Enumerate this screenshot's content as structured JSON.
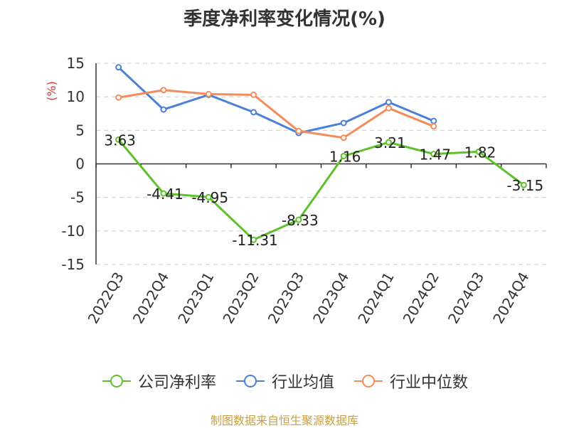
{
  "chart_data": {
    "type": "line",
    "title": "季度净利率变化情况(%)",
    "ylabel": "(%)",
    "xlabel": "",
    "categories": [
      "2022Q3",
      "2022Q4",
      "2023Q1",
      "2023Q2",
      "2023Q3",
      "2023Q4",
      "2024Q1",
      "2024Q2",
      "2024Q3",
      "2024Q4"
    ],
    "ylim": [
      -15,
      15
    ],
    "yticks": [
      15,
      10,
      5,
      0,
      -5,
      -10,
      -15
    ],
    "grid": true,
    "legend_position": "bottom",
    "series": [
      {
        "name": "公司净利率",
        "color": "#5ec12a",
        "values": [
          3.63,
          -4.41,
          -4.95,
          -11.31,
          -8.33,
          1.16,
          3.21,
          1.47,
          1.82,
          -3.15
        ],
        "labels": [
          "3.63",
          "-4.41",
          "-4.95",
          "-11.31",
          "-8.33",
          "1.16",
          "3.21",
          "1.47",
          "1.82",
          "-3.15"
        ]
      },
      {
        "name": "行业均值",
        "color": "#4c7fdb",
        "values": [
          14.4,
          8.1,
          10.3,
          7.7,
          4.6,
          6.1,
          9.2,
          6.4,
          null,
          null
        ]
      },
      {
        "name": "行业中位数",
        "color": "#f58c5a",
        "values": [
          9.9,
          11.0,
          10.4,
          10.3,
          4.9,
          3.9,
          8.3,
          5.6,
          null,
          null
        ]
      }
    ]
  },
  "source": "制图数据来自恒生聚源数据库"
}
